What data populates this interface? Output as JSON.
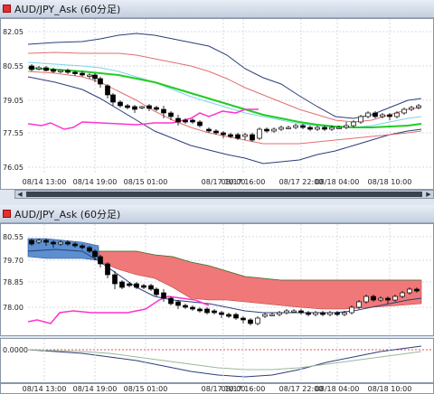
{
  "top_panel": {
    "title": "AUD/JPY_Ask (60分足)",
    "y_ticks": [
      "82.05",
      "80.55",
      "79.05",
      "77.55",
      "76.05"
    ],
    "x_ticks": [
      "08/14 13:00",
      "08/14 19:00",
      "08/15 01:00",
      "08/17 10:00",
      "08/17 16:00",
      "08/17 22:00",
      "08/18 04:00",
      "08/18 10:00"
    ]
  },
  "bottom_panel": {
    "title": "AUD/JPY_Ask (60分足)",
    "y_ticks": [
      "80.55",
      "79.70",
      "78.85",
      "78.00"
    ],
    "x_ticks": [
      "08/14 13:00",
      "08/14 19:00",
      "08/15 01:00",
      "08/17 10:00",
      "08/17 16:00",
      "08/17 22:00",
      "08/18 04:00",
      "08/18 10:00"
    ]
  },
  "oscillator_panel": {
    "zero_label": "0.0000"
  },
  "colors": {
    "bollinger_outer": "#2c3e7a",
    "bollinger_inner": "#e07070",
    "ma_mid": "#7fd3ec",
    "ma_green": "#22cc22",
    "chikou": "#ff33cc",
    "cloud_blue": "#5b8fd0",
    "cloud_red": "#f07878"
  }
}
